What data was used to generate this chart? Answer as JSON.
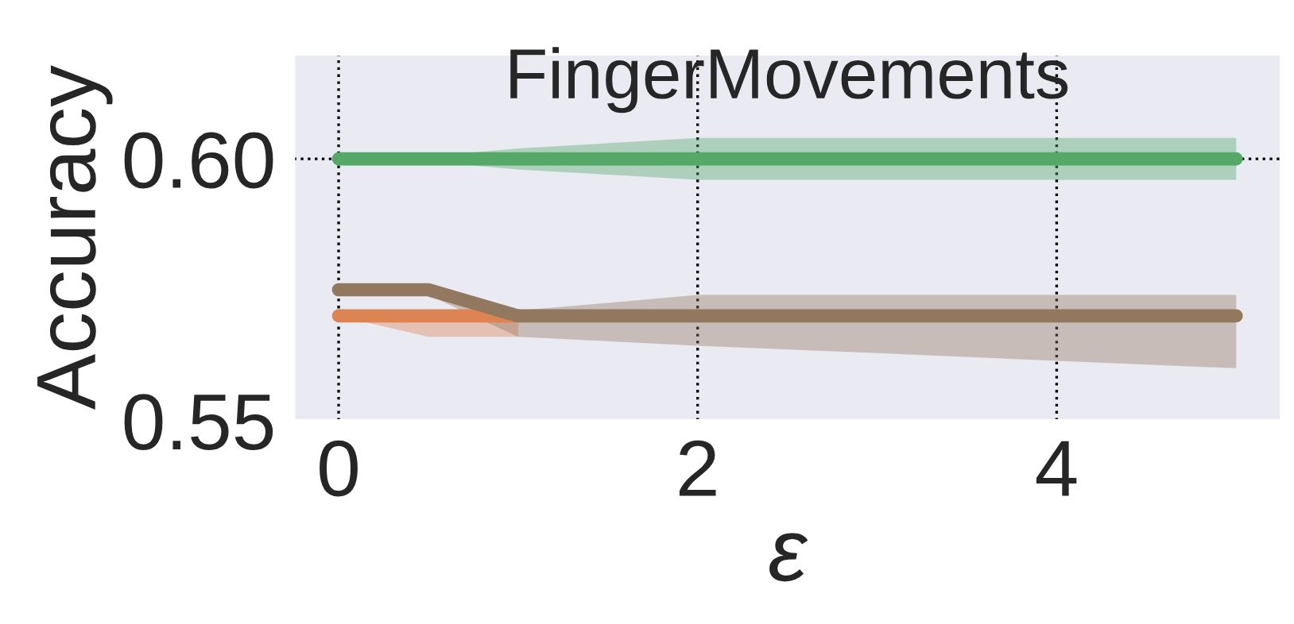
{
  "chart_data": {
    "type": "line",
    "title": "FingerMovements",
    "xlabel": "ε",
    "ylabel": "Accuracy",
    "xlim": [
      -0.25,
      5.25
    ],
    "xticks": [
      0,
      2,
      4
    ],
    "ylim": [
      0.55,
      0.62
    ],
    "yticks": [
      {
        "value": 0.55,
        "label": "0.55"
      },
      {
        "value": 0.6,
        "label": "0.60"
      }
    ],
    "grid": true,
    "marker": "none",
    "line_style": "solid",
    "series": [
      {
        "color": "#55a868",
        "x": [
          0,
          0.5,
          1,
          2,
          3,
          4,
          5
        ],
        "values": [
          0.6,
          0.6,
          0.6,
          0.6,
          0.6,
          0.6,
          0.6
        ],
        "lower": [
          0.6,
          0.5995,
          0.598,
          0.596,
          0.596,
          0.596,
          0.596
        ],
        "upper": [
          0.6,
          0.6005,
          0.602,
          0.604,
          0.604,
          0.604,
          0.604
        ]
      },
      {
        "color": "#dd8452",
        "x": [
          0,
          0.5,
          1
        ],
        "values": [
          0.57,
          0.57,
          0.57
        ],
        "lower": [
          0.57,
          0.566,
          0.566
        ],
        "upper": [
          0.57,
          0.5705,
          0.5705
        ]
      },
      {
        "color": "#937860",
        "x": [
          0,
          0.5,
          1,
          2,
          3,
          4,
          5
        ],
        "values": [
          0.575,
          0.575,
          0.57,
          0.57,
          0.57,
          0.57,
          0.57
        ],
        "lower": [
          0.575,
          0.574,
          0.566,
          0.5643,
          0.5629,
          0.5614,
          0.56
        ],
        "upper": [
          0.575,
          0.575,
          0.571,
          0.574,
          0.574,
          0.574,
          0.574
        ]
      }
    ]
  }
}
